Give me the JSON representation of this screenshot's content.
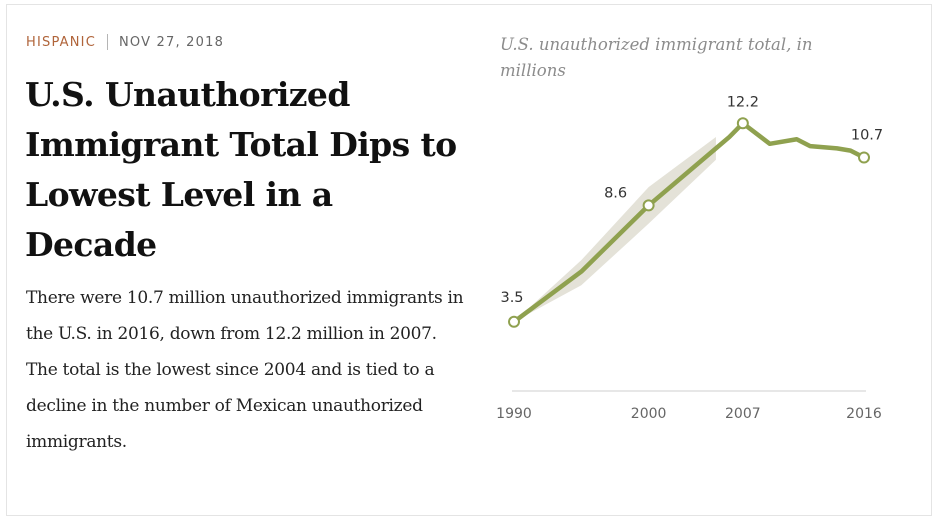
{
  "article": {
    "topic": "HISPANIC",
    "date": "NOV 27, 2018",
    "headline": "U.S. Unauthorized Immigrant Total Dips to Lowest Level in a Decade",
    "summary": "There were 10.7 million unauthorized immigrants in the U.S. in 2016, down from 12.2 million in 2007. The total is the lowest since 2004 and is tied to a decline in the number of Mexican unauthorized immigrants."
  },
  "chart_data": {
    "type": "line",
    "title": "U.S. unauthorized immigrant total, in millions",
    "xlabel": "",
    "ylabel": "",
    "x_ticks": [
      1990,
      2000,
      2007,
      2016
    ],
    "xlim": [
      1990,
      2016
    ],
    "ylim": [
      3,
      13
    ],
    "grid": false,
    "series": [
      {
        "x": [
          1990,
          1995,
          2000,
          2005,
          2006,
          2007,
          2009,
          2011,
          2012,
          2014,
          2015,
          2016
        ],
        "y": [
          3.5,
          5.7,
          8.6,
          11.1,
          11.6,
          12.2,
          11.3,
          11.5,
          11.2,
          11.1,
          11.0,
          10.7
        ]
      }
    ],
    "labeled_points": [
      {
        "x": 1990,
        "y": 3.5,
        "label": "3.5"
      },
      {
        "x": 2000,
        "y": 8.6,
        "label": "8.6"
      },
      {
        "x": 2007,
        "y": 12.2,
        "label": "12.2"
      },
      {
        "x": 2016,
        "y": 10.7,
        "label": "10.7"
      }
    ],
    "uncertainty_band": {
      "x": [
        1990,
        1995,
        2000,
        2005
      ],
      "low": [
        3.5,
        5.1,
        7.8,
        10.6
      ],
      "high": [
        3.5,
        6.2,
        9.4,
        11.6
      ]
    },
    "colors": {
      "line": "#8fa14f",
      "band": "#e4e2d8",
      "marker_fill": "#ffffff",
      "tick_text": "#666666",
      "label_text": "#333333",
      "axis": "#cfcfcf"
    }
  }
}
